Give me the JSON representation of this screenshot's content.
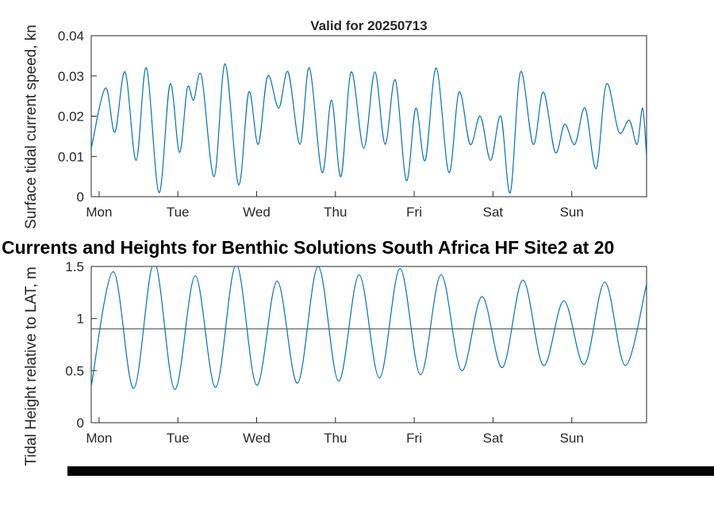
{
  "page": {
    "main_title": "Currents and Heights for Benthic Solutions South Africa HF Site2 at 20",
    "background_color": "#ffffff",
    "accent_color": "#0072BD"
  },
  "chart_data": [
    {
      "type": "line",
      "title": "Valid for 20250713",
      "ylabel": "Surface tidal current speed, kn",
      "xlabel": "",
      "xlim": [
        -0.1,
        6.95
      ],
      "ylim": [
        0,
        0.04
      ],
      "y_ticks": [
        0,
        0.01,
        0.02,
        0.03,
        0.04
      ],
      "y_tick_labels": [
        "0",
        "0.01",
        "0.02",
        "0.03",
        "0.04"
      ],
      "x_tick_positions": [
        0,
        1,
        2,
        3,
        4,
        5,
        6
      ],
      "x_tick_labels": [
        "Mon",
        "Tue",
        "Wed",
        "Thu",
        "Fri",
        "Sat",
        "Sun"
      ],
      "grid": false,
      "legend_position": "none",
      "line_color": "#0072BD",
      "series": [
        {
          "name": "surface tidal current speed",
          "points": [
            [
              -0.1,
              0.012
            ],
            [
              0.08,
              0.027
            ],
            [
              0.2,
              0.016
            ],
            [
              0.33,
              0.031
            ],
            [
              0.47,
              0.009
            ],
            [
              0.6,
              0.032
            ],
            [
              0.76,
              0.001
            ],
            [
              0.9,
              0.028
            ],
            [
              1.02,
              0.011
            ],
            [
              1.12,
              0.027
            ],
            [
              1.2,
              0.024
            ],
            [
              1.3,
              0.03
            ],
            [
              1.46,
              0.005
            ],
            [
              1.6,
              0.033
            ],
            [
              1.77,
              0.003
            ],
            [
              1.9,
              0.026
            ],
            [
              2.02,
              0.013
            ],
            [
              2.14,
              0.03
            ],
            [
              2.28,
              0.022
            ],
            [
              2.4,
              0.031
            ],
            [
              2.55,
              0.013
            ],
            [
              2.67,
              0.032
            ],
            [
              2.83,
              0.006
            ],
            [
              2.95,
              0.024
            ],
            [
              3.07,
              0.005
            ],
            [
              3.2,
              0.031
            ],
            [
              3.36,
              0.012
            ],
            [
              3.5,
              0.031
            ],
            [
              3.63,
              0.013
            ],
            [
              3.76,
              0.029
            ],
            [
              3.9,
              0.004
            ],
            [
              4.02,
              0.022
            ],
            [
              4.14,
              0.009
            ],
            [
              4.28,
              0.032
            ],
            [
              4.44,
              0.006
            ],
            [
              4.57,
              0.026
            ],
            [
              4.71,
              0.013
            ],
            [
              4.84,
              0.02
            ],
            [
              4.97,
              0.009
            ],
            [
              5.1,
              0.02
            ],
            [
              5.22,
              0.001
            ],
            [
              5.35,
              0.031
            ],
            [
              5.51,
              0.013
            ],
            [
              5.64,
              0.026
            ],
            [
              5.79,
              0.011
            ],
            [
              5.91,
              0.018
            ],
            [
              6.04,
              0.013
            ],
            [
              6.17,
              0.022
            ],
            [
              6.31,
              0.007
            ],
            [
              6.44,
              0.028
            ],
            [
              6.6,
              0.016
            ],
            [
              6.73,
              0.019
            ],
            [
              6.83,
              0.013
            ],
            [
              6.9,
              0.022
            ],
            [
              6.95,
              0.01
            ]
          ]
        }
      ]
    },
    {
      "type": "line",
      "title": "",
      "ylabel": "Tidal Height relative to LAT, m",
      "xlabel": "",
      "xlim": [
        -0.1,
        6.95
      ],
      "ylim": [
        0,
        1.5
      ],
      "y_ticks": [
        0,
        0.5,
        1,
        1.5
      ],
      "y_tick_labels": [
        "0",
        "0.5",
        "1",
        "1.5"
      ],
      "x_tick_positions": [
        0,
        1,
        2,
        3,
        4,
        5,
        6
      ],
      "x_tick_labels": [
        "Mon",
        "Tue",
        "Wed",
        "Thu",
        "Fri",
        "Sat",
        "Sun"
      ],
      "grid": false,
      "legend_position": "none",
      "line_color": "#0072BD",
      "reference_line_y": 0.9,
      "reference_line_color": "#404040",
      "series": [
        {
          "name": "tidal height relative to LAT",
          "points": [
            [
              -0.1,
              0.35
            ],
            [
              0.18,
              1.45
            ],
            [
              0.44,
              0.33
            ],
            [
              0.7,
              1.54
            ],
            [
              0.96,
              0.32
            ],
            [
              1.22,
              1.41
            ],
            [
              1.48,
              0.34
            ],
            [
              1.74,
              1.52
            ],
            [
              2.0,
              0.36
            ],
            [
              2.26,
              1.36
            ],
            [
              2.52,
              0.38
            ],
            [
              2.78,
              1.5
            ],
            [
              3.04,
              0.4
            ],
            [
              3.3,
              1.42
            ],
            [
              3.56,
              0.43
            ],
            [
              3.82,
              1.48
            ],
            [
              4.08,
              0.46
            ],
            [
              4.34,
              1.42
            ],
            [
              4.6,
              0.5
            ],
            [
              4.86,
              1.21
            ],
            [
              5.12,
              0.53
            ],
            [
              5.38,
              1.37
            ],
            [
              5.64,
              0.55
            ],
            [
              5.9,
              1.17
            ],
            [
              6.16,
              0.56
            ],
            [
              6.42,
              1.35
            ],
            [
              6.68,
              0.55
            ],
            [
              6.95,
              1.33
            ]
          ]
        }
      ]
    }
  ]
}
